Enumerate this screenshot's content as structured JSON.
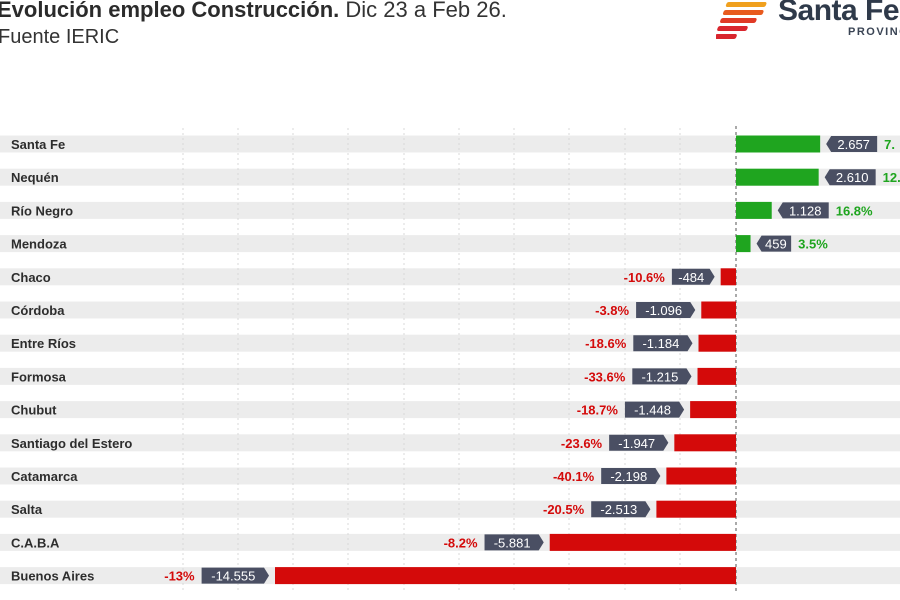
{
  "header": {
    "title_bold": "Evolución empleo Construcción.",
    "title_rest": "Dic 23 a Feb 26.",
    "subtitle": "Fuente IERIC"
  },
  "logo": {
    "name": "Santa Fe",
    "sub": "PROVINCIA"
  },
  "colors": {
    "positive": "#1fa51f",
    "negative": "#d40a0a",
    "label_bg": "#4a4f63",
    "row_bg": "#ececec",
    "grid": "#d9d9d9",
    "logo_stripes": [
      "#f0a01e",
      "#e85a1e",
      "#d9262e"
    ]
  },
  "chart_data": {
    "type": "bar",
    "orientation": "horizontal",
    "categories": [
      "Santa Fe",
      "Nequén",
      "Río Negro",
      "Mendoza",
      "Chaco",
      "Córdoba",
      "Entre Ríos",
      "Formosa",
      "Chubut",
      "Santiago del Estero",
      "Catamarca",
      "Salta",
      "C.A.B.A",
      "Buenos Aires"
    ],
    "values": [
      2657,
      2610,
      1128,
      459,
      -484,
      -1096,
      -1184,
      -1215,
      -1448,
      -1947,
      -2198,
      -2513,
      -5881,
      -14555
    ],
    "value_labels": [
      "2.657",
      "2.610",
      "1.128",
      "459",
      "-484",
      "-1.096",
      "-1.184",
      "-1.215",
      "-1.448",
      "-1.947",
      "-2.198",
      "-2.513",
      "-5.881",
      "-14.555"
    ],
    "pct_labels": [
      "7.",
      "12.",
      "16.8%",
      "3.5%",
      "-10.6%",
      "-3.8%",
      "-18.6%",
      "-33.6%",
      "-18.7%",
      "-23.6%",
      "-40.1%",
      "-20.5%",
      "-8.2%",
      "-13%"
    ],
    "grid": true
  }
}
